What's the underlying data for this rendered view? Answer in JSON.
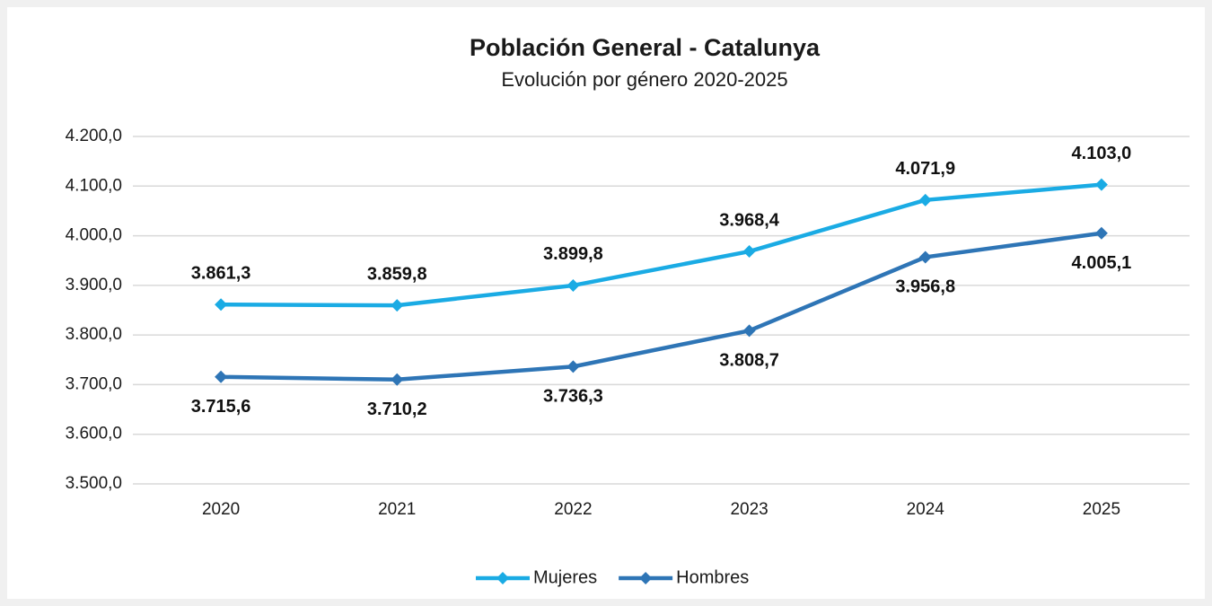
{
  "chart_data": {
    "type": "line",
    "title": "Población General - Catalunya",
    "subtitle": "Evolución por género 2020-2025",
    "categories": [
      "2020",
      "2021",
      "2022",
      "2023",
      "2024",
      "2025"
    ],
    "series": [
      {
        "name": "Mujeres",
        "color": "#1aabe4",
        "label_position": "above",
        "values": [
          3861.3,
          3859.8,
          3899.8,
          3968.4,
          4071.9,
          4103.0
        ],
        "value_labels": [
          "3.861,3",
          "3.859,8",
          "3.899,8",
          "3.968,4",
          "4.071,9",
          "4.103,0"
        ]
      },
      {
        "name": "Hombres",
        "color": "#2e75b6",
        "label_position": "below",
        "values": [
          3715.6,
          3710.2,
          3736.3,
          3808.7,
          3956.8,
          4005.1
        ],
        "value_labels": [
          "3.715,6",
          "3.710,2",
          "3.736,3",
          "3.808,7",
          "3.956,8",
          "4.005,1"
        ]
      }
    ],
    "ylim": [
      3500,
      4200
    ],
    "yticks": [
      {
        "value": 3500,
        "label": "3.500,0"
      },
      {
        "value": 3600,
        "label": "3.600,0"
      },
      {
        "value": 3700,
        "label": "3.700,0"
      },
      {
        "value": 3800,
        "label": "3.800,0"
      },
      {
        "value": 3900,
        "label": "3.900,0"
      },
      {
        "value": 4000,
        "label": "4.000,0"
      },
      {
        "value": 4100,
        "label": "4.100,0"
      },
      {
        "value": 4200,
        "label": "4.200,0"
      }
    ],
    "grid": true,
    "legend": "bottom"
  }
}
